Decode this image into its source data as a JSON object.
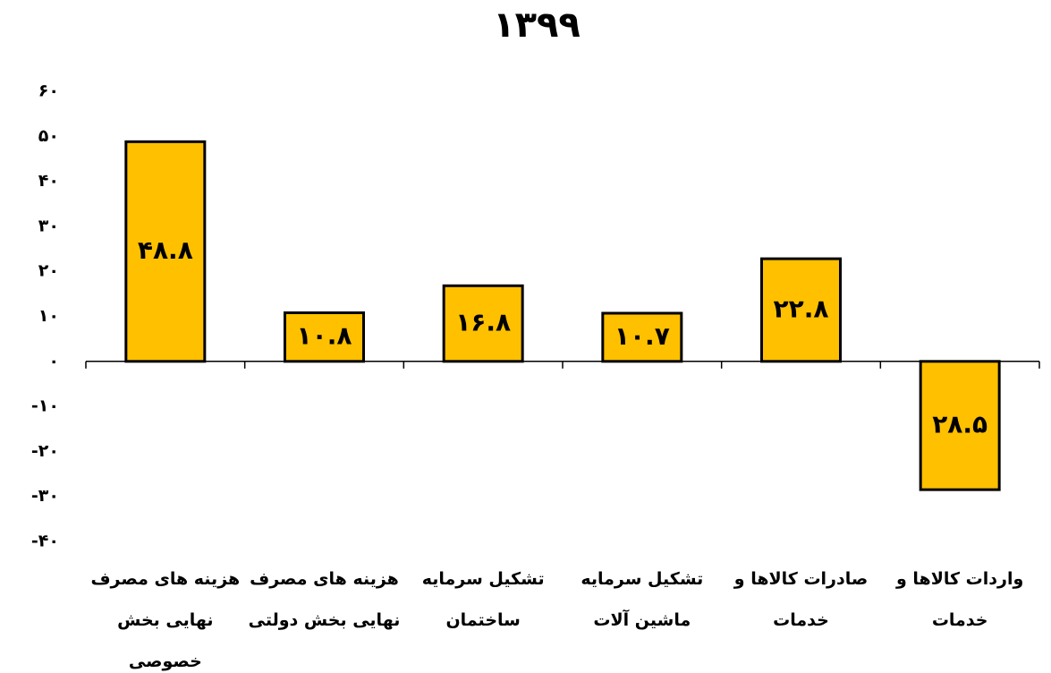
{
  "chart_data": {
    "type": "bar",
    "title": "۱۳۹۹",
    "categories": [
      "هزینه های مصرف نهایی بخش خصوصی",
      "هزینه های مصرف نهایی بخش دولتی",
      "تشکیل سرمایه ساختمان",
      "تشکیل سرمایه ماشین آلات",
      "صادرات کالاها و خدمات",
      "واردات کالاها و خدمات"
    ],
    "values": [
      48.8,
      10.8,
      16.8,
      10.7,
      22.8,
      -28.5
    ],
    "value_labels": [
      "۴۸.۸",
      "۱۰.۸",
      "۱۶.۸",
      "۱۰.۷",
      "۲۲.۸",
      "۲۸.۵"
    ],
    "color": "#FFC000",
    "ylim": [
      -40,
      60
    ],
    "yticks": [
      {
        "value": -40,
        "label": "-۴۰"
      },
      {
        "value": -30,
        "label": "-۳۰"
      },
      {
        "value": -20,
        "label": "-۲۰"
      },
      {
        "value": -10,
        "label": "-۱۰"
      },
      {
        "value": 0,
        "label": "۰"
      },
      {
        "value": 10,
        "label": "۱۰"
      },
      {
        "value": 20,
        "label": "۲۰"
      },
      {
        "value": 30,
        "label": "۳۰"
      },
      {
        "value": 40,
        "label": "۴۰"
      },
      {
        "value": 50,
        "label": "۵۰"
      },
      {
        "value": 60,
        "label": "۶۰"
      }
    ],
    "grid": false
  }
}
